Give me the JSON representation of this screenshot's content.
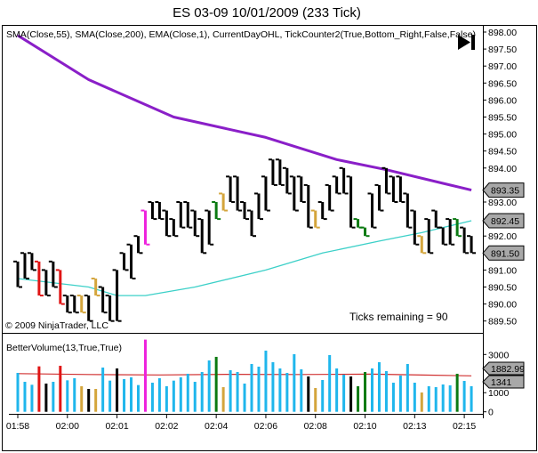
{
  "title": "ES 03-09  10/01/2009 (233 Tick)",
  "price_panel": {
    "indicator_label": "SMA(Close,55), SMA(Close,200), EMA(Close,1), CurrentDayOHL, TickCounter2(True,Bottom_Right,False,False)",
    "copyright": "© 2009 NinjaTrader, LLC",
    "ticks_remaining": "Ticks remaining = 90",
    "go_to_latest_icon": "skip-to-end-icon",
    "axis_labels": [
      "898.00",
      "897.50",
      "897.00",
      "896.50",
      "896.00",
      "895.50",
      "895.00",
      "894.50",
      "894.00",
      "893.00",
      "892.00",
      "891.00",
      "890.50",
      "890.00",
      "889.50"
    ],
    "markers": [
      {
        "label": "893.35",
        "value": 893.35
      },
      {
        "label": "892.45",
        "value": 892.45
      },
      {
        "label": "891.50",
        "value": 891.5
      }
    ]
  },
  "volume_panel": {
    "indicator_label": "BetterVolume(13,True,True)",
    "axis_labels": [
      "3000",
      "1000",
      "0"
    ],
    "markers": [
      {
        "label": "1882.99",
        "value": 1882.99
      },
      {
        "label": "1341",
        "value": 1341
      }
    ]
  },
  "colors": {
    "up_bar": "#000000",
    "black": "#000000",
    "blue": "#1fb6ec",
    "red": "#e01414",
    "gold": "#d4a53c",
    "green": "#0b7a12",
    "magenta": "#ee22dd",
    "sma200": "#8a1fc8",
    "sma55": "#3cd0c8",
    "vol_avg": "#d03030"
  },
  "chart_data": {
    "type": "ohlc",
    "time_labels": [
      {
        "label": "01:58",
        "bar": 0
      },
      {
        "label": "02:00",
        "bar": 7
      },
      {
        "label": "02:01",
        "bar": 14
      },
      {
        "label": "02:02",
        "bar": 21
      },
      {
        "label": "02:04",
        "bar": 28
      },
      {
        "label": "02:06",
        "bar": 35
      },
      {
        "label": "02:08",
        "bar": 42
      },
      {
        "label": "02:10",
        "bar": 49
      },
      {
        "label": "02:13",
        "bar": 56
      },
      {
        "label": "02:15",
        "bar": 63
      }
    ],
    "ylim_price": [
      889.5,
      898.0
    ],
    "ylim_volume": [
      0,
      3000
    ],
    "bars": [
      {
        "h": 891.25,
        "l": 890.5,
        "c": "black"
      },
      {
        "h": 891.5,
        "l": 890.75,
        "c": "black"
      },
      {
        "h": 891.5,
        "l": 891.0,
        "c": "black"
      },
      {
        "h": 891.25,
        "l": 890.25,
        "c": "red"
      },
      {
        "h": 891.0,
        "l": 890.25,
        "c": "black"
      },
      {
        "h": 891.25,
        "l": 890.5,
        "c": "black"
      },
      {
        "h": 891.0,
        "l": 890.0,
        "c": "red"
      },
      {
        "h": 890.25,
        "l": 889.75,
        "c": "black"
      },
      {
        "h": 890.25,
        "l": 889.75,
        "c": "black"
      },
      {
        "h": 890.25,
        "l": 889.75,
        "c": "gold"
      },
      {
        "h": 890.25,
        "l": 889.5,
        "c": "black"
      },
      {
        "h": 890.75,
        "l": 890.25,
        "c": "gold"
      },
      {
        "h": 890.5,
        "l": 889.75,
        "c": "black"
      },
      {
        "h": 890.25,
        "l": 889.5,
        "c": "black"
      },
      {
        "h": 891.0,
        "l": 889.5,
        "c": "black"
      },
      {
        "h": 891.5,
        "l": 891.0,
        "c": "black"
      },
      {
        "h": 891.75,
        "l": 890.75,
        "c": "black"
      },
      {
        "h": 892.0,
        "l": 891.5,
        "c": "black"
      },
      {
        "h": 892.75,
        "l": 891.75,
        "c": "magenta"
      },
      {
        "h": 893.0,
        "l": 892.5,
        "c": "black"
      },
      {
        "h": 893.0,
        "l": 892.5,
        "c": "black"
      },
      {
        "h": 892.75,
        "l": 892.0,
        "c": "black"
      },
      {
        "h": 892.5,
        "l": 892.0,
        "c": "black"
      },
      {
        "h": 893.0,
        "l": 892.25,
        "c": "black"
      },
      {
        "h": 893.0,
        "l": 892.25,
        "c": "black"
      },
      {
        "h": 892.75,
        "l": 892.0,
        "c": "black"
      },
      {
        "h": 892.5,
        "l": 891.5,
        "c": "black"
      },
      {
        "h": 892.75,
        "l": 891.75,
        "c": "black"
      },
      {
        "h": 893.0,
        "l": 892.5,
        "c": "green"
      },
      {
        "h": 893.25,
        "l": 892.75,
        "c": "gold"
      },
      {
        "h": 893.75,
        "l": 893.0,
        "c": "black"
      },
      {
        "h": 893.75,
        "l": 892.75,
        "c": "black"
      },
      {
        "h": 893.0,
        "l": 892.5,
        "c": "black"
      },
      {
        "h": 892.75,
        "l": 892.0,
        "c": "black"
      },
      {
        "h": 893.25,
        "l": 892.5,
        "c": "black"
      },
      {
        "h": 893.75,
        "l": 892.75,
        "c": "black"
      },
      {
        "h": 894.25,
        "l": 893.5,
        "c": "black"
      },
      {
        "h": 894.25,
        "l": 893.5,
        "c": "black"
      },
      {
        "h": 894.0,
        "l": 893.25,
        "c": "black"
      },
      {
        "h": 893.75,
        "l": 892.75,
        "c": "black"
      },
      {
        "h": 893.75,
        "l": 893.0,
        "c": "black"
      },
      {
        "h": 893.5,
        "l": 892.25,
        "c": "black"
      },
      {
        "h": 892.75,
        "l": 892.25,
        "c": "gold"
      },
      {
        "h": 893.0,
        "l": 892.5,
        "c": "black"
      },
      {
        "h": 893.5,
        "l": 892.75,
        "c": "black"
      },
      {
        "h": 893.75,
        "l": 893.25,
        "c": "black"
      },
      {
        "h": 894.0,
        "l": 893.25,
        "c": "black"
      },
      {
        "h": 893.75,
        "l": 892.25,
        "c": "black"
      },
      {
        "h": 892.5,
        "l": 892.25,
        "c": "green"
      },
      {
        "h": 892.25,
        "l": 892.0,
        "c": "green"
      },
      {
        "h": 893.25,
        "l": 892.25,
        "c": "black"
      },
      {
        "h": 893.5,
        "l": 892.75,
        "c": "black"
      },
      {
        "h": 894.0,
        "l": 893.25,
        "c": "black"
      },
      {
        "h": 893.75,
        "l": 893.0,
        "c": "black"
      },
      {
        "h": 893.75,
        "l": 893.0,
        "c": "black"
      },
      {
        "h": 893.25,
        "l": 892.25,
        "c": "black"
      },
      {
        "h": 892.75,
        "l": 891.75,
        "c": "black"
      },
      {
        "h": 892.0,
        "l": 891.5,
        "c": "gold"
      },
      {
        "h": 892.5,
        "l": 891.5,
        "c": "black"
      },
      {
        "h": 892.75,
        "l": 892.25,
        "c": "black"
      },
      {
        "h": 892.25,
        "l": 891.75,
        "c": "black"
      },
      {
        "h": 892.5,
        "l": 891.75,
        "c": "black"
      },
      {
        "h": 892.5,
        "l": 892.0,
        "c": "green"
      },
      {
        "h": 892.25,
        "l": 891.5,
        "c": "black"
      },
      {
        "h": 892.0,
        "l": 891.5,
        "c": "black"
      }
    ],
    "volume": [
      {
        "v": 2036,
        "c": "blue"
      },
      {
        "v": 1570,
        "c": "blue"
      },
      {
        "v": 1414,
        "c": "blue"
      },
      {
        "v": 2378,
        "c": "red"
      },
      {
        "v": 1477,
        "c": "black"
      },
      {
        "v": 1570,
        "c": "blue"
      },
      {
        "v": 2409,
        "c": "red"
      },
      {
        "v": 1648,
        "c": "blue"
      },
      {
        "v": 1756,
        "c": "blue"
      },
      {
        "v": 1337,
        "c": "gold"
      },
      {
        "v": 1197,
        "c": "black"
      },
      {
        "v": 1197,
        "c": "gold"
      },
      {
        "v": 2316,
        "c": "blue"
      },
      {
        "v": 1632,
        "c": "blue"
      },
      {
        "v": 2269,
        "c": "black"
      },
      {
        "v": 1710,
        "c": "blue"
      },
      {
        "v": 1803,
        "c": "blue"
      },
      {
        "v": 1399,
        "c": "blue"
      },
      {
        "v": 3777,
        "c": "magenta"
      },
      {
        "v": 1523,
        "c": "blue"
      },
      {
        "v": 1756,
        "c": "blue"
      },
      {
        "v": 1337,
        "c": "blue"
      },
      {
        "v": 1632,
        "c": "blue"
      },
      {
        "v": 1803,
        "c": "blue"
      },
      {
        "v": 1990,
        "c": "blue"
      },
      {
        "v": 1570,
        "c": "blue"
      },
      {
        "v": 2083,
        "c": "blue"
      },
      {
        "v": 2689,
        "c": "blue"
      },
      {
        "v": 2876,
        "c": "green"
      },
      {
        "v": 1290,
        "c": "gold"
      },
      {
        "v": 2176,
        "c": "blue"
      },
      {
        "v": 2083,
        "c": "blue"
      },
      {
        "v": 1477,
        "c": "blue"
      },
      {
        "v": 2503,
        "c": "blue"
      },
      {
        "v": 2363,
        "c": "blue"
      },
      {
        "v": 3202,
        "c": "blue"
      },
      {
        "v": 2596,
        "c": "blue"
      },
      {
        "v": 2269,
        "c": "blue"
      },
      {
        "v": 2036,
        "c": "blue"
      },
      {
        "v": 3015,
        "c": "blue"
      },
      {
        "v": 2223,
        "c": "blue"
      },
      {
        "v": 1850,
        "c": "black"
      },
      {
        "v": 1244,
        "c": "gold"
      },
      {
        "v": 1663,
        "c": "blue"
      },
      {
        "v": 2969,
        "c": "blue"
      },
      {
        "v": 2269,
        "c": "blue"
      },
      {
        "v": 1943,
        "c": "blue"
      },
      {
        "v": 1850,
        "c": "black"
      },
      {
        "v": 1337,
        "c": "green"
      },
      {
        "v": 2083,
        "c": "green"
      },
      {
        "v": 2269,
        "c": "blue"
      },
      {
        "v": 2596,
        "c": "blue"
      },
      {
        "v": 2129,
        "c": "blue"
      },
      {
        "v": 1523,
        "c": "blue"
      },
      {
        "v": 1896,
        "c": "blue"
      },
      {
        "v": 2503,
        "c": "blue"
      },
      {
        "v": 1523,
        "c": "blue"
      },
      {
        "v": 1010,
        "c": "gold"
      },
      {
        "v": 1337,
        "c": "blue"
      },
      {
        "v": 1290,
        "c": "blue"
      },
      {
        "v": 1430,
        "c": "blue"
      },
      {
        "v": 1384,
        "c": "blue"
      },
      {
        "v": 1990,
        "c": "green"
      },
      {
        "v": 1616,
        "c": "blue"
      },
      {
        "v": 1341,
        "c": "blue"
      }
    ],
    "sma200": [
      [
        0,
        897.9
      ],
      [
        10,
        896.6
      ],
      [
        22,
        895.5
      ],
      [
        35,
        894.9
      ],
      [
        45,
        894.25
      ],
      [
        52,
        893.95
      ],
      [
        60,
        893.55
      ],
      [
        64,
        893.35
      ]
    ],
    "sma55": [
      [
        0,
        890.75
      ],
      [
        10,
        890.5
      ],
      [
        14,
        890.25
      ],
      [
        18,
        890.25
      ],
      [
        25,
        890.5
      ],
      [
        35,
        891.0
      ],
      [
        43,
        891.5
      ],
      [
        51,
        891.85
      ],
      [
        57,
        892.1
      ],
      [
        64,
        892.45
      ]
    ],
    "vol_avg": [
      [
        0,
        2000
      ],
      [
        10,
        1950
      ],
      [
        20,
        1930
      ],
      [
        30,
        1960
      ],
      [
        40,
        1950
      ],
      [
        50,
        1970
      ],
      [
        58,
        1920
      ],
      [
        64,
        1883
      ]
    ]
  }
}
